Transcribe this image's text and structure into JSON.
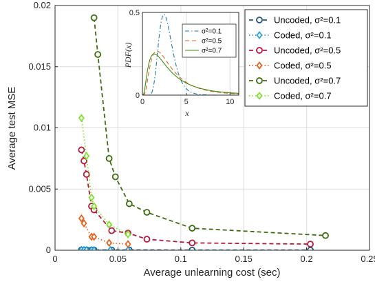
{
  "chart_data": [
    {
      "type": "line",
      "xlabel": "Average unlearning cost (sec)",
      "ylabel": "Average test MSE",
      "xlim": [
        0,
        0.25
      ],
      "ylim": [
        0,
        0.02
      ],
      "xticks": [
        "0",
        "0.05",
        "0.1",
        "0.15",
        "0.2",
        "0.25"
      ],
      "yticks": [
        "0",
        "0.005",
        "0.01",
        "0.015",
        "0.02"
      ],
      "grid": true,
      "legend_position": "top-right",
      "series": [
        {
          "name": "Uncoded, σ²=0.1",
          "color": "#1f5a80",
          "style": "dashed",
          "marker": "circle",
          "x": [
            0.021,
            0.023,
            0.025,
            0.029,
            0.031,
            0.045,
            0.059,
            0.109,
            0.203
          ],
          "y": [
            3e-05,
            3e-05,
            2e-05,
            2e-05,
            2e-05,
            2e-05,
            2e-05,
            1e-05,
            1e-05
          ]
        },
        {
          "name": "Coded, σ²=0.1",
          "color": "#29a3e0",
          "style": "dotted",
          "marker": "diamond",
          "x": [
            0.021,
            0.023,
            0.025,
            0.029,
            0.031,
            0.044,
            0.058
          ],
          "y": [
            2e-05,
            2e-05,
            2e-05,
            1e-05,
            1e-05,
            1e-05,
            1e-05
          ]
        },
        {
          "name": "Uncoded, σ²=0.5",
          "color": "#b5173d",
          "style": "dashed",
          "marker": "circle",
          "x": [
            0.021,
            0.023,
            0.025,
            0.029,
            0.031,
            0.045,
            0.058,
            0.073,
            0.109,
            0.203
          ],
          "y": [
            0.0082,
            0.0073,
            0.0062,
            0.0036,
            0.0033,
            0.0016,
            0.0014,
            0.0009,
            0.0006,
            0.0005
          ]
        },
        {
          "name": "Coded, σ²=0.5",
          "color": "#e0641f",
          "style": "dotted",
          "marker": "diamond",
          "x": [
            0.021,
            0.023,
            0.029,
            0.031,
            0.043,
            0.058
          ],
          "y": [
            0.0026,
            0.0022,
            0.0011,
            0.0011,
            0.0006,
            0.0005
          ]
        },
        {
          "name": "Uncoded, σ²=0.7",
          "color": "#3d6b0f",
          "style": "dashed",
          "marker": "circle",
          "x": [
            0.031,
            0.034,
            0.043,
            0.048,
            0.059,
            0.073,
            0.109,
            0.215
          ],
          "y": [
            0.019,
            0.016,
            0.0075,
            0.006,
            0.0038,
            0.0031,
            0.0018,
            0.0012
          ]
        },
        {
          "name": "Coded, σ²=0.7",
          "color": "#80e02e",
          "style": "dotted",
          "marker": "diamond",
          "x": [
            0.021,
            0.025,
            0.029,
            0.031,
            0.043,
            0.058
          ],
          "y": [
            0.0108,
            0.0077,
            0.0043,
            0.0036,
            0.0021,
            0.0013
          ]
        }
      ]
    },
    {
      "type": "line",
      "xlabel": "x",
      "ylabel": "PDF(x)",
      "xlim": [
        0,
        11
      ],
      "ylim": [
        0,
        0.5
      ],
      "xticks": [
        "0",
        "5",
        "10"
      ],
      "yticks": [
        "0",
        "0.5"
      ],
      "grid": true,
      "legend_position": "top-right",
      "series": [
        {
          "name": "σ²=0.1",
          "color": "#1f77b4",
          "style": "dashdot",
          "lognormal_sigma2": 0.1
        },
        {
          "name": "σ²=0.5",
          "color": "#e0641f",
          "style": "dashed",
          "lognormal_sigma2": 0.5
        },
        {
          "name": "σ²=0.7",
          "color": "#3d8b0f",
          "style": "solid",
          "lognormal_sigma2": 0.7
        }
      ]
    }
  ]
}
